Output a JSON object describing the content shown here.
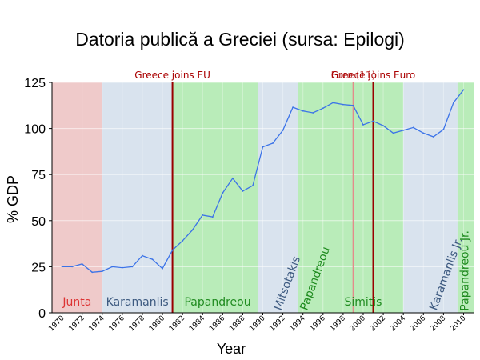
{
  "chart_data": {
    "type": "line",
    "title": "Datoria publică a Greciei (sursa: Epilogi)",
    "xlabel": "Year",
    "ylabel": "% GDP",
    "xlim": [
      1969,
      2011
    ],
    "ylim": [
      0,
      125
    ],
    "yticks": [
      0,
      25,
      50,
      75,
      100,
      125
    ],
    "xticks": [
      1970,
      1972,
      1974,
      1976,
      1978,
      1980,
      1982,
      1984,
      1986,
      1988,
      1990,
      1992,
      1994,
      1996,
      1998,
      2000,
      2002,
      2004,
      2006,
      2008,
      2010
    ],
    "grid": true,
    "series": [
      {
        "x": [
          1970,
          1971,
          1972,
          1973,
          1974,
          1975,
          1976,
          1977,
          1978,
          1979,
          1980,
          1981,
          1982,
          1983,
          1984,
          1985,
          1986,
          1987,
          1988,
          1989,
          1990,
          1991,
          1992,
          1993,
          1994,
          1995,
          1996,
          1997,
          1998,
          1999,
          2000,
          2001,
          2002,
          2003,
          2004,
          2005,
          2006,
          2007,
          2008,
          2009,
          2010
        ],
        "values": [
          25,
          25,
          26.5,
          22,
          22.5,
          25,
          24.5,
          25,
          31,
          29,
          24,
          34,
          39,
          45,
          53,
          52,
          65,
          73,
          66,
          69,
          90,
          92,
          99,
          111.5,
          109.5,
          108.5,
          111,
          114,
          113,
          112.5,
          102,
          104,
          101.5,
          97.5,
          99,
          100.5,
          97.5,
          95.5,
          99.5,
          114,
          121
        ],
        "color": "#3b73e8"
      }
    ],
    "periods": [
      {
        "label": "Junta",
        "start": 1969,
        "end": 1974,
        "fill": "#efcaca",
        "label_color": "#dd3333",
        "label_x": 1971.5,
        "label_y": 4,
        "rotate": 0
      },
      {
        "label": "Karamanlis",
        "start": 1974,
        "end": 1981,
        "fill": "#d9e3ee",
        "label_color": "#3d5a80",
        "label_x": 1977.5,
        "label_y": 4,
        "rotate": 0
      },
      {
        "label": "Papandreou",
        "start": 1981,
        "end": 1989.5,
        "fill": "#b9ecb9",
        "label_color": "#1f8b1f",
        "label_x": 1985.5,
        "label_y": 4,
        "rotate": 0
      },
      {
        "label": "Mitsotakis",
        "start": 1989.5,
        "end": 1993.5,
        "fill": "#d9e3ee",
        "label_color": "#3d5a80",
        "label_x": 1991.8,
        "label_y": 1,
        "rotate": -70
      },
      {
        "label": "Papandreou",
        "start": 1993.5,
        "end": 1996,
        "fill": "#b9ecb9",
        "label_color": "#1f8b1f",
        "label_x": 1994.4,
        "label_y": 1,
        "rotate": -70
      },
      {
        "label": "Simitis",
        "start": 1996,
        "end": 2004,
        "fill": "#b9ecb9",
        "label_color": "#1f8b1f",
        "label_x": 2000,
        "label_y": 4,
        "rotate": 0
      },
      {
        "label": "Karamanlis Jr.",
        "start": 2004,
        "end": 2009.4,
        "fill": "#d9e3ee",
        "label_color": "#3d5a80",
        "label_x": 2007.3,
        "label_y": 1,
        "rotate": -70
      },
      {
        "label": "Papandreou Jr.",
        "start": 2009.4,
        "end": 2011,
        "fill": "#b9ecb9",
        "label_color": "#1f8b1f",
        "label_x": 2010.5,
        "label_y": 1,
        "rotate": -90
      }
    ],
    "events": [
      {
        "label": "Greece joins EU",
        "x": 1981,
        "color": "#990000",
        "width": 2,
        "label_color": "#aa0000"
      },
      {
        "label": "Euro (11)",
        "x": 1999,
        "color": "#e38b8b",
        "width": 1.5,
        "label_color": "#c44444"
      },
      {
        "label": "Greece joins Euro",
        "x": 2001,
        "color": "#990000",
        "width": 2,
        "label_color": "#aa0000"
      }
    ]
  }
}
